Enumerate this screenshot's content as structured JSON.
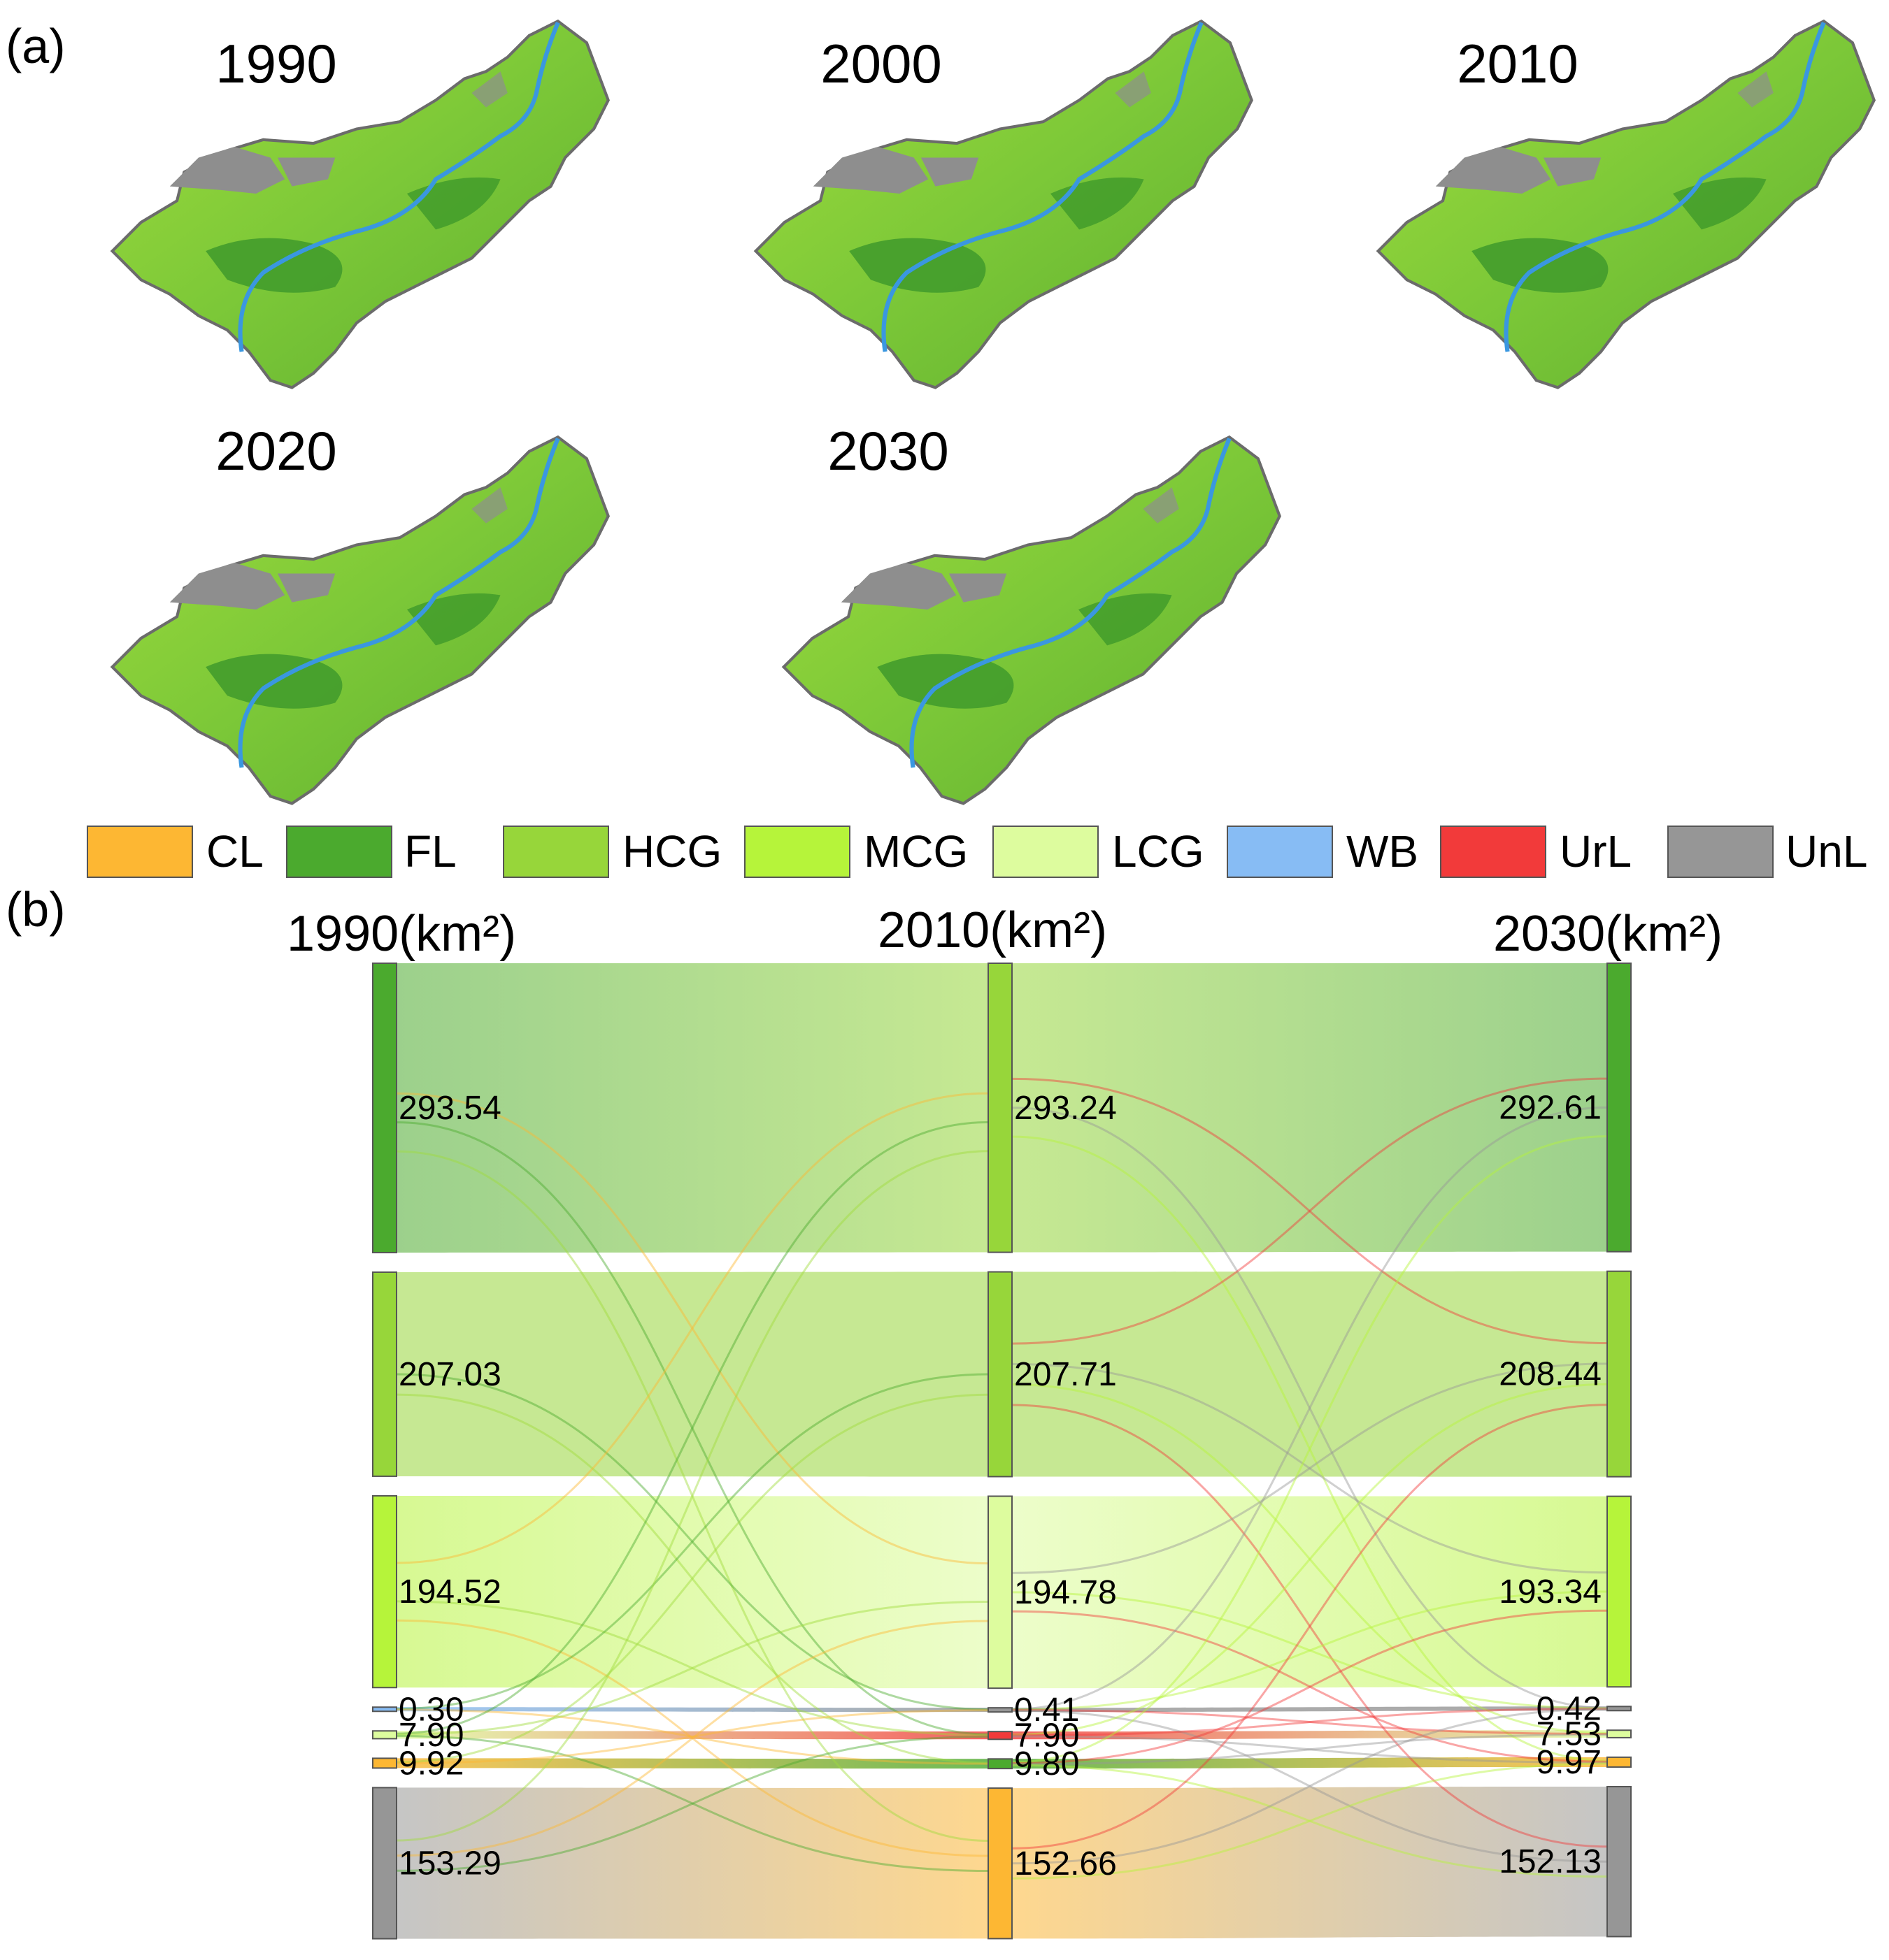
{
  "panel_a": {
    "label": "(a)",
    "maps": [
      {
        "year": "1990"
      },
      {
        "year": "2000"
      },
      {
        "year": "2010"
      },
      {
        "year": "2020"
      },
      {
        "year": "2030"
      }
    ]
  },
  "panel_b": {
    "label": "(b)"
  },
  "legend": [
    {
      "code": "CL",
      "color": "#FDB733"
    },
    {
      "code": "FL",
      "color": "#4BAA2E"
    },
    {
      "code": "HCG",
      "color": "#97D63A"
    },
    {
      "code": "MCG",
      "color": "#B6F43A"
    },
    {
      "code": "LCG",
      "color": "#DDFC9E"
    },
    {
      "code": "WB",
      "color": "#87BCF4"
    },
    {
      "code": "UrL",
      "color": "#F23A3A"
    },
    {
      "code": "UnL",
      "color": "#969696"
    }
  ],
  "chart_data": {
    "type": "sankey",
    "columns": [
      {
        "title": "1990(km²)",
        "nodes": [
          {
            "class": "FL",
            "value": 293.54,
            "label": "293.54"
          },
          {
            "class": "HCG",
            "value": 207.03,
            "label": "207.03"
          },
          {
            "class": "MCG",
            "value": 194.52,
            "label": "194.52"
          },
          {
            "class": "WB",
            "value": 0.3,
            "label": "0.30"
          },
          {
            "class": "LCG",
            "value": 7.9,
            "label": "7.90"
          },
          {
            "class": "CL",
            "value": 9.92,
            "label": "9.92"
          },
          {
            "class": "UnL",
            "value": 153.29,
            "label": "153.29"
          }
        ]
      },
      {
        "title": "2010(km²)",
        "nodes": [
          {
            "class": "HCG",
            "value": 293.24,
            "label": "293.24"
          },
          {
            "class": "HCG",
            "value": 207.71,
            "label": "207.71"
          },
          {
            "class": "LCG",
            "value": 194.78,
            "label": "194.78"
          },
          {
            "class": "UnL",
            "value": 0.41,
            "label": "0.41"
          },
          {
            "class": "UrL",
            "value": 7.9,
            "label": "7.90"
          },
          {
            "class": "FL",
            "value": 9.8,
            "label": "9.80"
          },
          {
            "class": "CL",
            "value": 152.66,
            "label": "152.66"
          }
        ]
      },
      {
        "title": "2030(km²)",
        "nodes": [
          {
            "class": "FL",
            "value": 292.61,
            "label": "292.61"
          },
          {
            "class": "HCG",
            "value": 208.44,
            "label": "208.44"
          },
          {
            "class": "MCG",
            "value": 193.34,
            "label": "193.34"
          },
          {
            "class": "UnL",
            "value": 0.42,
            "label": "0.42"
          },
          {
            "class": "LCG",
            "value": 7.53,
            "label": "7.53"
          },
          {
            "class": "CL",
            "value": 9.97,
            "label": "9.97"
          },
          {
            "class": "UnL",
            "value": 152.13,
            "label": "152.13"
          }
        ]
      }
    ]
  }
}
